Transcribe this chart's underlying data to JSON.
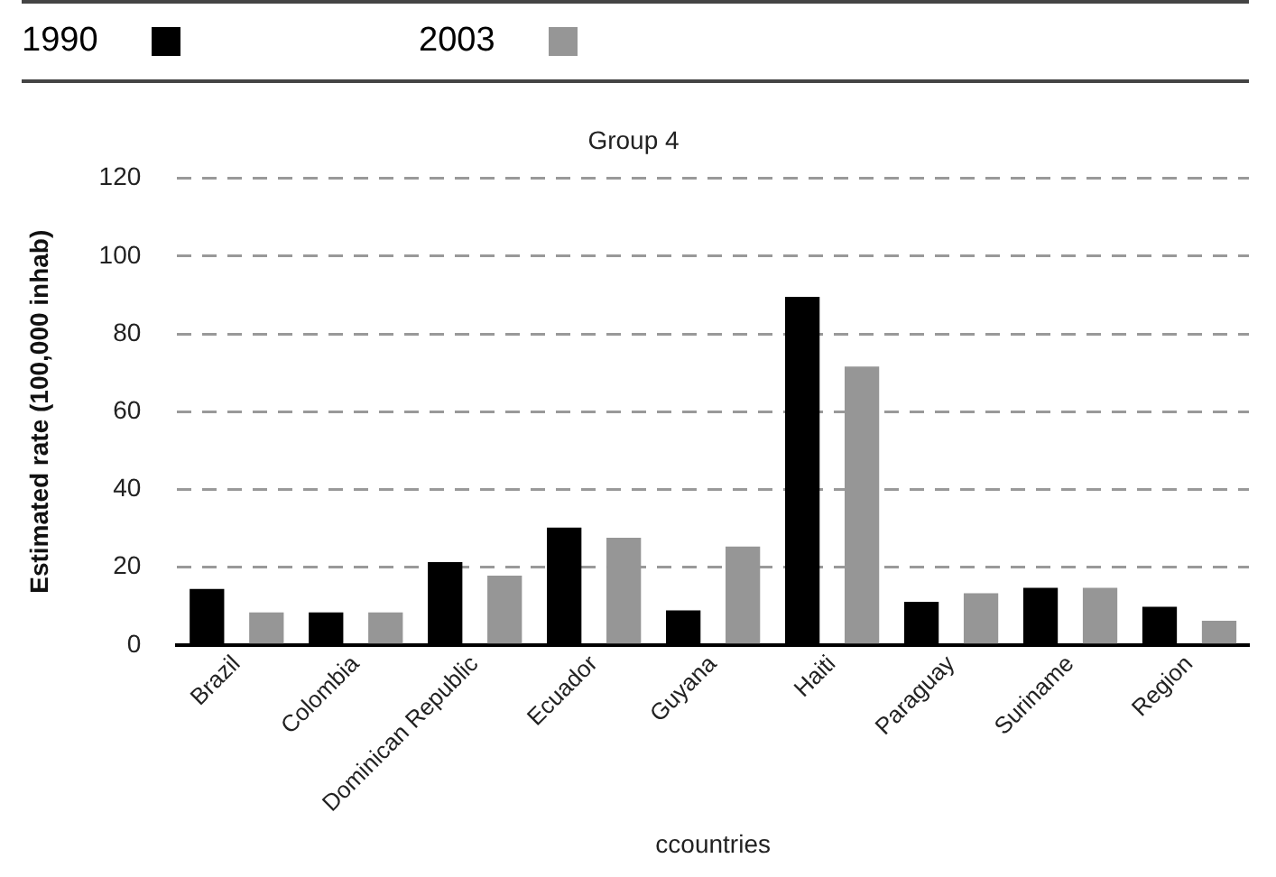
{
  "chart_data": {
    "type": "bar",
    "title": "Group 4",
    "xlabel": "ccountries",
    "ylabel": "Estimated rate (100,000 inhab)",
    "categories": [
      "Brazil",
      "Colombia",
      "Dominican Republic",
      "Ecuador",
      "Guyana",
      "Haiti",
      "Paraguay",
      "Suriname",
      "Region"
    ],
    "series": [
      {
        "name": "1990",
        "color": "#000000",
        "values": [
          14.4,
          8.4,
          21.3,
          30.2,
          8.9,
          89.5,
          11.1,
          14.7,
          9.8
        ]
      },
      {
        "name": "2003",
        "color": "#969696",
        "values": [
          8.4,
          8.4,
          17.8,
          27.6,
          25.3,
          71.6,
          13.3,
          14.7,
          6.2
        ]
      }
    ],
    "ylim": [
      0,
      120
    ],
    "yticks": [
      0,
      20,
      40,
      60,
      80,
      100,
      120
    ],
    "grid": "y",
    "legend": "top"
  }
}
